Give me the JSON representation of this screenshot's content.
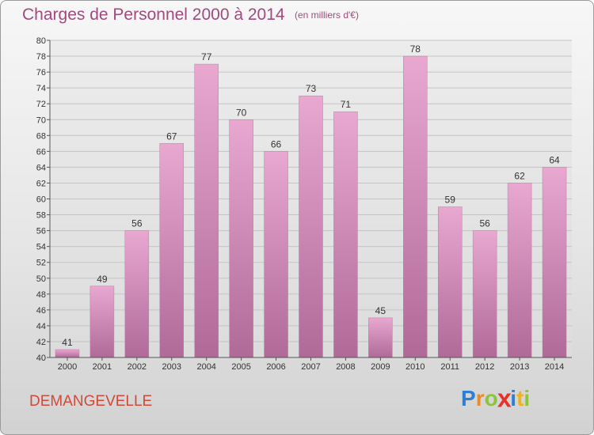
{
  "chart_data": {
    "type": "bar",
    "title": "Charges de Personnel 2000 à 2014",
    "subtitle": "(en milliers d'€)",
    "categories": [
      "2000",
      "2001",
      "2002",
      "2003",
      "2004",
      "2005",
      "2006",
      "2007",
      "2008",
      "2009",
      "2010",
      "2011",
      "2012",
      "2013",
      "2014"
    ],
    "values": [
      41,
      49,
      56,
      67,
      77,
      70,
      66,
      73,
      71,
      45,
      78,
      59,
      56,
      62,
      64
    ],
    "ylim": [
      40,
      80
    ],
    "yticks": [
      40,
      42,
      44,
      46,
      48,
      50,
      52,
      54,
      56,
      58,
      60,
      62,
      64,
      66,
      68,
      70,
      72,
      74,
      76,
      78,
      80
    ],
    "grid": true,
    "bar_color": "#d98ab8"
  },
  "commune": "DEMANGEVELLE",
  "logo": {
    "letters": [
      "P",
      "r",
      "o",
      "x",
      "i",
      "t",
      "i"
    ],
    "colors": [
      "#2e7fd3",
      "#f08a1c",
      "#8cc43c",
      "#e8312b",
      "#2e7fd3",
      "#f0b21c",
      "#8cc43c"
    ]
  }
}
